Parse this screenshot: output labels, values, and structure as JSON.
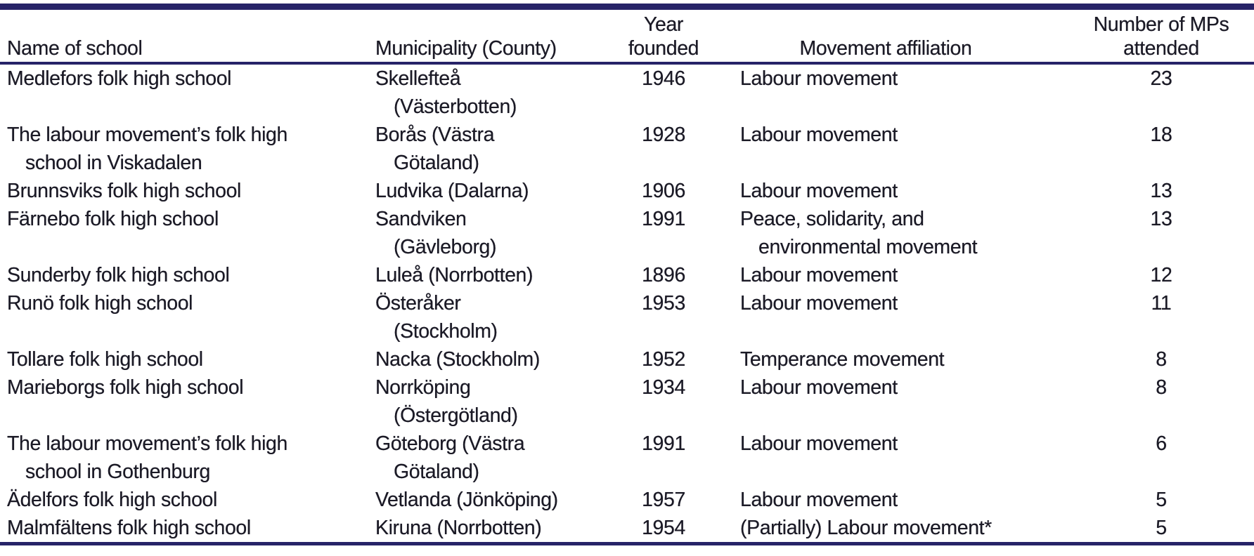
{
  "table": {
    "colors": {
      "rule": "#272368",
      "text": "#1b1a26",
      "background": "#ffffff"
    },
    "headers": {
      "school": "Name of school",
      "municipality": "Municipality (County)",
      "year_line1": "Year",
      "year_line2": "founded",
      "movement": "Movement affiliation",
      "mps_line1": "Number of MPs",
      "mps_line2": "attended"
    },
    "rows": [
      {
        "school": [
          "Medlefors folk high school"
        ],
        "municipality": [
          "Skellefteå",
          "(Västerbotten)"
        ],
        "year": "1946",
        "movement": [
          "Labour movement"
        ],
        "mps": "23"
      },
      {
        "school": [
          "The labour movement’s folk high",
          "school in Viskadalen"
        ],
        "municipality": [
          "Borås (Västra",
          "Götaland)"
        ],
        "year": "1928",
        "movement": [
          "Labour movement"
        ],
        "mps": "18"
      },
      {
        "school": [
          "Brunnsviks folk high school"
        ],
        "municipality": [
          "Ludvika (Dalarna)"
        ],
        "year": "1906",
        "movement": [
          "Labour movement"
        ],
        "mps": "13"
      },
      {
        "school": [
          "Färnebo folk high school"
        ],
        "municipality": [
          "Sandviken",
          "(Gävleborg)"
        ],
        "year": "1991",
        "movement": [
          "Peace, solidarity, and",
          "environmental movement"
        ],
        "mps": "13"
      },
      {
        "school": [
          "Sunderby folk high school"
        ],
        "municipality": [
          "Luleå (Norrbotten)"
        ],
        "year": "1896",
        "movement": [
          "Labour movement"
        ],
        "mps": "12"
      },
      {
        "school": [
          "Runö folk high school"
        ],
        "municipality": [
          "Österåker",
          "(Stockholm)"
        ],
        "year": "1953",
        "movement": [
          "Labour movement"
        ],
        "mps": "11"
      },
      {
        "school": [
          "Tollare folk high school"
        ],
        "municipality": [
          "Nacka (Stockholm)"
        ],
        "year": "1952",
        "movement": [
          "Temperance movement"
        ],
        "mps": "8"
      },
      {
        "school": [
          "Marieborgs folk high school"
        ],
        "municipality": [
          "Norrköping",
          "(Östergötland)"
        ],
        "year": "1934",
        "movement": [
          "Labour movement"
        ],
        "mps": "8"
      },
      {
        "school": [
          "The labour movement’s folk high",
          "school in Gothenburg"
        ],
        "municipality": [
          "Göteborg (Västra",
          "Götaland)"
        ],
        "year": "1991",
        "movement": [
          "Labour movement"
        ],
        "mps": "6"
      },
      {
        "school": [
          "Ädelfors folk high school"
        ],
        "municipality": [
          "Vetlanda (Jönköping)"
        ],
        "year": "1957",
        "movement": [
          "Labour movement"
        ],
        "mps": "5"
      },
      {
        "school": [
          "Malmfältens folk high school"
        ],
        "municipality": [
          "Kiruna (Norrbotten)"
        ],
        "year": "1954",
        "movement": [
          "(Partially) Labour movement*"
        ],
        "mps": "5"
      }
    ]
  }
}
